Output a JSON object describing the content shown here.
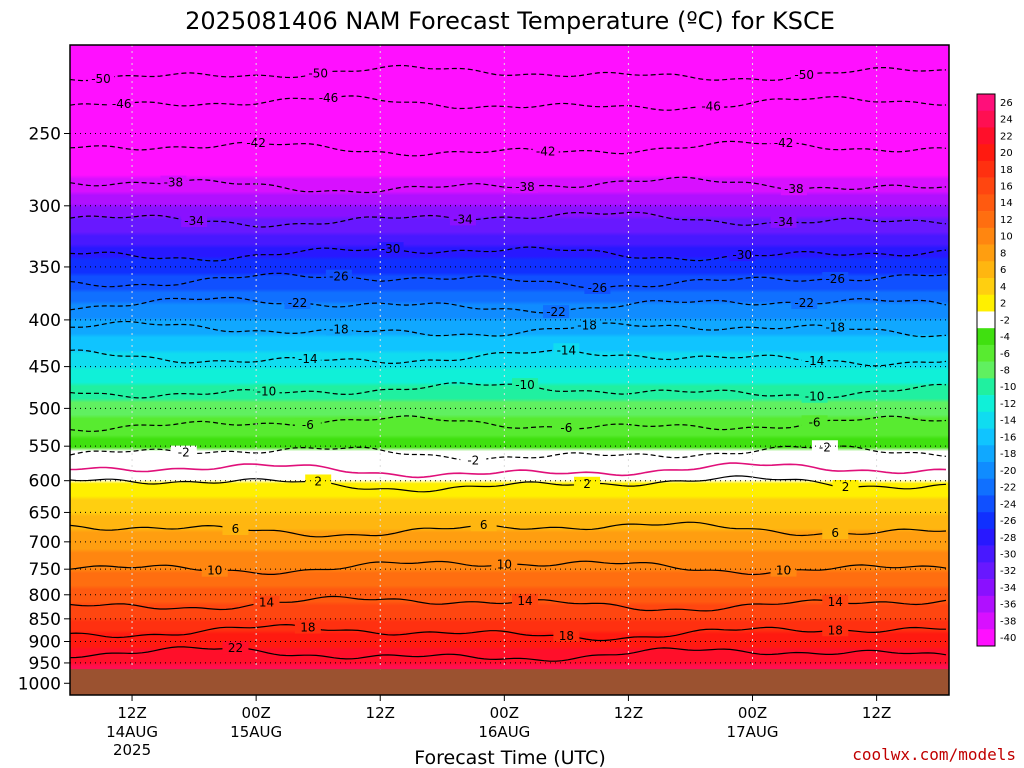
{
  "chart_data": {
    "type": "heatmap",
    "title": "2025081406 NAM Forecast Temperature (ºC) for KSCE",
    "xlabel": "Forecast Time (UTC)",
    "ylabel": "",
    "credit": "coolwx.com/models",
    "y_scale": "log",
    "ylim": [
      1030,
      200
    ],
    "xlim": [
      6,
      91
    ],
    "y_ticks": [
      250,
      300,
      350,
      400,
      450,
      500,
      550,
      600,
      650,
      700,
      750,
      800,
      850,
      900,
      950,
      1000
    ],
    "x_ticks": [
      {
        "hour": 12,
        "label": "12Z",
        "day": "14AUG",
        "year": "2025"
      },
      {
        "hour": 24,
        "label": "00Z",
        "day": "15AUG",
        "year": ""
      },
      {
        "hour": 36,
        "label": "12Z",
        "day": "",
        "year": ""
      },
      {
        "hour": 48,
        "label": "00Z",
        "day": "16AUG",
        "year": ""
      },
      {
        "hour": 60,
        "label": "12Z",
        "day": "",
        "year": ""
      },
      {
        "hour": 72,
        "label": "00Z",
        "day": "17AUG",
        "year": ""
      },
      {
        "hour": 84,
        "label": "12Z",
        "day": "",
        "year": ""
      }
    ],
    "surface_pressure": 965,
    "colorbar": {
      "levels": [
        26,
        24,
        22,
        20,
        18,
        16,
        14,
        12,
        10,
        8,
        6,
        4,
        2,
        -2,
        -4,
        -6,
        -8,
        -10,
        -12,
        -14,
        -16,
        -18,
        -20,
        -22,
        -24,
        -26,
        -28,
        -30,
        -32,
        -34,
        -36,
        -38,
        -40
      ],
      "colors": [
        "#ff0f7a",
        "#ff0f52",
        "#ff0f2a",
        "#ff1a10",
        "#ff3010",
        "#ff4610",
        "#ff5a10",
        "#ff6e10",
        "#ff8610",
        "#ff9e10",
        "#ffb610",
        "#ffcf10",
        "#fff000",
        "#ffffff",
        "#40e010",
        "#58eb30",
        "#60f060",
        "#20f0a0",
        "#10f0d8",
        "#10dcf0",
        "#10c4ff",
        "#10a8ff",
        "#108cff",
        "#1070ff",
        "#1050ff",
        "#1030ff",
        "#2818ff",
        "#4818ff",
        "#6818ff",
        "#8a10ff",
        "#b010ff",
        "#d810ff",
        "#ff10ff"
      ]
    },
    "temperature_profile": {
      "pressure": [
        200,
        250,
        300,
        350,
        400,
        450,
        500,
        550,
        560,
        600,
        650,
        700,
        750,
        800,
        850,
        900,
        950,
        965
      ],
      "temperature": [
        -54,
        -44,
        -34,
        -25,
        -18,
        -12,
        -7,
        -3,
        0,
        2,
        6,
        9,
        12,
        15,
        18,
        21,
        24,
        25
      ]
    },
    "isotherms": [
      {
        "value": -50,
        "p": 215,
        "label": "-50",
        "labels_at": [
          9,
          30,
          77
        ]
      },
      {
        "value": -46,
        "p": 232,
        "label": "-46",
        "labels_at": [
          11,
          31,
          68
        ]
      },
      {
        "value": -42,
        "p": 260,
        "label": "-42",
        "labels_at": [
          24,
          52,
          75
        ]
      },
      {
        "value": -38,
        "p": 285,
        "label": "-38",
        "labels_at": [
          16,
          50,
          76
        ]
      },
      {
        "value": -34,
        "p": 310,
        "label": "-34",
        "labels_at": [
          18,
          44,
          75
        ]
      },
      {
        "value": -30,
        "p": 338,
        "label": "-30",
        "labels_at": [
          37,
          71
        ]
      },
      {
        "value": -26,
        "p": 362,
        "label": "-26",
        "labels_at": [
          32,
          57,
          80
        ]
      },
      {
        "value": -22,
        "p": 385,
        "label": "-22",
        "labels_at": [
          28,
          53,
          77
        ]
      },
      {
        "value": -18,
        "p": 410,
        "label": "-18",
        "labels_at": [
          32,
          56,
          80
        ]
      },
      {
        "value": -14,
        "p": 440,
        "label": "-14",
        "labels_at": [
          29,
          54,
          78
        ]
      },
      {
        "value": -10,
        "p": 478,
        "label": "-10",
        "labels_at": [
          25,
          50,
          78
        ]
      },
      {
        "value": -6,
        "p": 520,
        "label": "-6",
        "labels_at": [
          29,
          54,
          78
        ]
      },
      {
        "value": -2,
        "p": 560,
        "label": "-2",
        "labels_at": [
          17,
          45,
          79
        ]
      },
      {
        "value": 2,
        "p": 605,
        "label": "2",
        "labels_at": [
          30,
          56,
          81
        ]
      },
      {
        "value": 6,
        "p": 678,
        "label": "6",
        "labels_at": [
          22,
          46,
          80
        ]
      },
      {
        "value": 10,
        "p": 745,
        "label": "10",
        "labels_at": [
          20,
          48,
          75
        ]
      },
      {
        "value": 14,
        "p": 818,
        "label": "14",
        "labels_at": [
          25,
          50,
          80
        ]
      },
      {
        "value": 18,
        "p": 880,
        "label": "18",
        "labels_at": [
          29,
          54,
          80
        ]
      },
      {
        "value": 22,
        "p": 930,
        "label": "22",
        "labels_at": [
          22
        ]
      }
    ],
    "freezing_line": {
      "value": 0,
      "p": 585
    }
  }
}
